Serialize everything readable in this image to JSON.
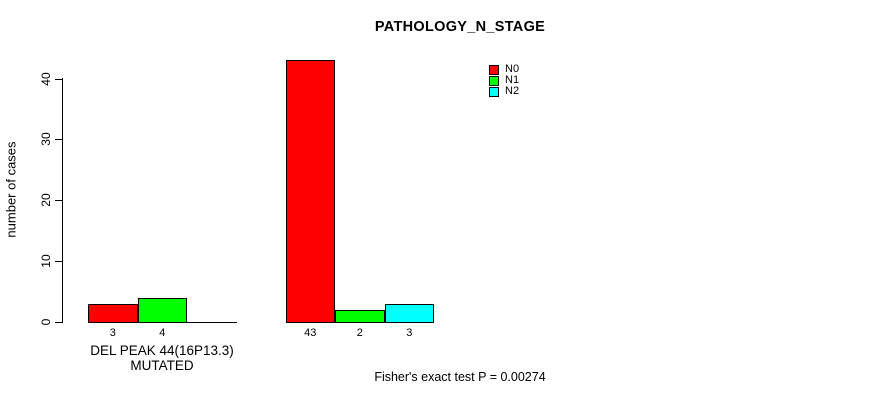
{
  "chart_data": {
    "type": "bar",
    "title": "PATHOLOGY_N_STAGE",
    "ylabel": "number of cases",
    "footer": "Fisher's exact test P = 0.00274",
    "ylim": [
      0,
      40
    ],
    "yticks": [
      0,
      10,
      20,
      30,
      40
    ],
    "grid": false,
    "legend_position": "top-right",
    "series_names": [
      "N0",
      "N1",
      "N2"
    ],
    "colors": [
      "#FF0000",
      "#00FF00",
      "#00FFFF"
    ],
    "legend": [
      {
        "label": "N0",
        "color": "#FF0000"
      },
      {
        "label": "N1",
        "color": "#00FF00"
      },
      {
        "label": "N2",
        "color": "#00FFFF"
      }
    ],
    "groups": [
      {
        "label": "DEL PEAK 44(16P13.3) MUTATED",
        "values": [
          3,
          4,
          0
        ],
        "bar_labels": [
          "3",
          "4",
          ""
        ]
      },
      {
        "label": "",
        "values": [
          43,
          2,
          3
        ],
        "bar_labels": [
          "43",
          "2",
          "3"
        ]
      }
    ]
  }
}
